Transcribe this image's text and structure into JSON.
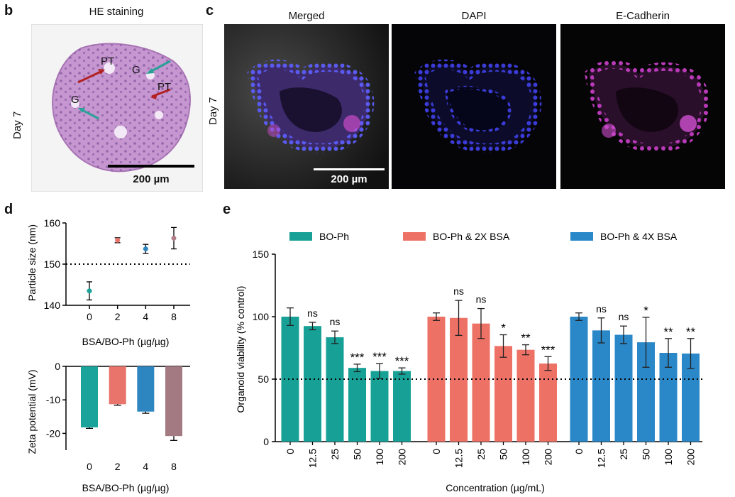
{
  "panel_b": {
    "letter": "b",
    "title": "HE staining",
    "day_label": "Day 7",
    "scale_label": "200 µm",
    "annotations": [
      "PT",
      "G",
      "G",
      "PT"
    ],
    "colors": {
      "tissue": "#c79ad0",
      "red_arrow": "#b22222",
      "teal_arrow": "#2aa198"
    }
  },
  "panel_c": {
    "letter": "c",
    "day_label": "Day 7",
    "titles": [
      "Merged",
      "DAPI",
      "E-Cadherin"
    ],
    "scale_label": "200 µm",
    "colors": {
      "dapi": "#3b3bd8",
      "ecad": "#b83ab8"
    }
  },
  "panel_d": {
    "letter": "d",
    "xlabel": "BSA/BO-Ph (µg/µg)"
  },
  "panel_e": {
    "letter": "e",
    "legend": [
      "BO-Ph",
      "BO-Ph & 2X BSA",
      "BO-Ph & 4X BSA"
    ]
  },
  "chart_data": [
    {
      "id": "particle_size",
      "type": "scatter",
      "title": "",
      "xlabel": "BSA/BO-Ph (µg/µg)",
      "ylabel": "Particle size (nm)",
      "categories": [
        "0",
        "2",
        "4",
        "8"
      ],
      "values": [
        143.5,
        155.8,
        153.7,
        156.3
      ],
      "errors": [
        2.2,
        0.6,
        1.1,
        2.6
      ],
      "colors": [
        "#1aa39a",
        "#e8746b",
        "#2e86c1",
        "#b07f88"
      ],
      "ylim": [
        140,
        160
      ],
      "yticks": [
        140,
        150,
        160
      ],
      "reference_line": 150
    },
    {
      "id": "zeta_potential",
      "type": "bar",
      "title": "",
      "xlabel": "BSA/BO-Ph (µg/µg)",
      "ylabel": "Zeta potential (mV)",
      "categories": [
        "0",
        "2",
        "4",
        "8"
      ],
      "values": [
        -18.2,
        -11.3,
        -13.5,
        -20.8
      ],
      "errors": [
        0.3,
        0.3,
        0.5,
        1.3
      ],
      "colors": [
        "#1aa39a",
        "#e8746b",
        "#2e86c1",
        "#a47a82"
      ],
      "ylim": [
        -25,
        0
      ],
      "yticks": [
        0,
        -10,
        -20
      ]
    },
    {
      "id": "organoid_viability",
      "type": "bar",
      "title": "",
      "xlabel": "Concentration (µg/mL)",
      "ylabel": "Organoid viability (% control)",
      "categories": [
        "0",
        "12.5",
        "25",
        "50",
        "100",
        "200"
      ],
      "ylim": [
        0,
        150
      ],
      "yticks": [
        0,
        50,
        100,
        150
      ],
      "reference_line": 50,
      "series": [
        {
          "name": "BO-Ph",
          "color": "#17a196",
          "values": [
            100,
            92.5,
            83.5,
            59,
            56.5,
            56.5
          ],
          "errors": [
            7,
            3,
            5,
            3,
            6,
            2.5
          ],
          "sig": [
            "",
            "ns",
            "ns",
            "***",
            "***",
            "***"
          ]
        },
        {
          "name": "BO-Ph & 2X BSA",
          "color": "#ee7166",
          "values": [
            100,
            99,
            94.5,
            76.5,
            73.5,
            62.5
          ],
          "errors": [
            3,
            14,
            12,
            9,
            4,
            5.5
          ],
          "sig": [
            "",
            "ns",
            "ns",
            "*",
            "**",
            "***"
          ]
        },
        {
          "name": "BO-Ph & 4X BSA",
          "color": "#2a87c8",
          "values": [
            100,
            89,
            85.5,
            79.5,
            71,
            70.5
          ],
          "errors": [
            3,
            10,
            7,
            20,
            11.5,
            12
          ],
          "sig": [
            "",
            "ns",
            "ns",
            "*",
            "**",
            "**"
          ]
        }
      ]
    }
  ]
}
